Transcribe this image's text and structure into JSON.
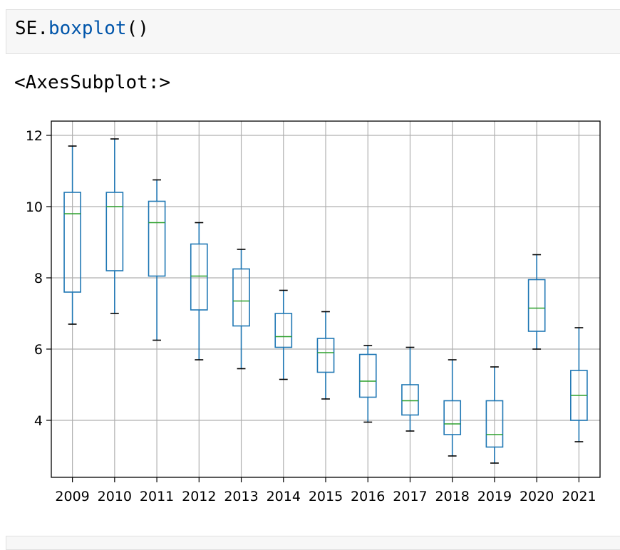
{
  "input_cell": {
    "object": "SE",
    "dot": ".",
    "method": "boxplot",
    "parens": "()"
  },
  "output_text": "<AxesSubplot:>",
  "colors": {
    "box": "#1f77b4",
    "median": "#2ca02c",
    "whisker_cap": "#000000",
    "grid": "#b0b0b0",
    "frame": "#000000"
  },
  "chart_data": {
    "type": "boxplot",
    "grid": true,
    "ylim": [
      2.4,
      12.4
    ],
    "yticks": [
      4,
      6,
      8,
      10,
      12
    ],
    "categories": [
      "2009",
      "2010",
      "2011",
      "2012",
      "2013",
      "2014",
      "2015",
      "2016",
      "2017",
      "2018",
      "2019",
      "2020",
      "2021"
    ],
    "boxes": [
      {
        "label": "2009",
        "whislo": 6.7,
        "q1": 7.6,
        "med": 9.8,
        "q3": 10.4,
        "whishi": 11.7
      },
      {
        "label": "2010",
        "whislo": 7.0,
        "q1": 8.2,
        "med": 10.0,
        "q3": 10.4,
        "whishi": 11.9
      },
      {
        "label": "2011",
        "whislo": 6.25,
        "q1": 8.05,
        "med": 9.55,
        "q3": 10.15,
        "whishi": 10.75
      },
      {
        "label": "2012",
        "whislo": 5.7,
        "q1": 7.1,
        "med": 8.05,
        "q3": 8.95,
        "whishi": 9.55
      },
      {
        "label": "2013",
        "whislo": 5.45,
        "q1": 6.65,
        "med": 7.35,
        "q3": 8.25,
        "whishi": 8.8
      },
      {
        "label": "2014",
        "whislo": 5.15,
        "q1": 6.05,
        "med": 6.35,
        "q3": 7.0,
        "whishi": 7.65
      },
      {
        "label": "2015",
        "whislo": 4.6,
        "q1": 5.35,
        "med": 5.9,
        "q3": 6.3,
        "whishi": 7.05
      },
      {
        "label": "2016",
        "whislo": 3.95,
        "q1": 4.65,
        "med": 5.1,
        "q3": 5.85,
        "whishi": 6.1
      },
      {
        "label": "2017",
        "whislo": 3.7,
        "q1": 4.15,
        "med": 4.55,
        "q3": 5.0,
        "whishi": 6.05
      },
      {
        "label": "2018",
        "whislo": 3.0,
        "q1": 3.6,
        "med": 3.9,
        "q3": 4.55,
        "whishi": 5.7
      },
      {
        "label": "2019",
        "whislo": 2.8,
        "q1": 3.25,
        "med": 3.6,
        "q3": 4.55,
        "whishi": 5.5
      },
      {
        "label": "2020",
        "whislo": 6.0,
        "q1": 6.5,
        "med": 7.15,
        "q3": 7.95,
        "whishi": 8.65
      },
      {
        "label": "2021",
        "whislo": 3.4,
        "q1": 4.0,
        "med": 4.7,
        "q3": 5.4,
        "whishi": 6.6
      }
    ]
  }
}
